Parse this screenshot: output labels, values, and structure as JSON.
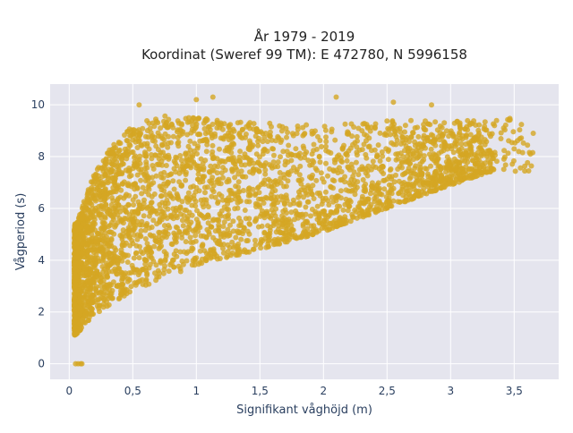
{
  "chart_data": {
    "type": "scatter",
    "title": "År 1979 - 2019",
    "subtitle": "Koordinat (Sweref 99 TM): E 472780, N 5996158",
    "xlabel": "Signifikant våghöjd (m)",
    "ylabel": "Vågperiod (s)",
    "xlim": [
      -0.15,
      3.85
    ],
    "ylim": [
      -0.6,
      10.8
    ],
    "x_ticks": [
      0,
      0.5,
      1,
      1.5,
      2,
      2.5,
      3,
      3.5
    ],
    "x_tick_labels": [
      "0",
      "0,5",
      "1",
      "1,5",
      "2",
      "2,5",
      "3",
      "3,5"
    ],
    "y_ticks": [
      0,
      2,
      4,
      6,
      8,
      10
    ],
    "y_tick_labels": [
      "0",
      "2",
      "4",
      "6",
      "8",
      "10"
    ],
    "grid": true,
    "plot_background": "#e5e5ee",
    "marker_color": "#d4a623",
    "point_cloud": {
      "description_of_shape": "dense cloud of wave height vs period observations",
      "lower_envelope": [
        [
          0.05,
          1.1
        ],
        [
          0.2,
          1.9
        ],
        [
          0.5,
          2.8
        ],
        [
          1.0,
          3.8
        ],
        [
          1.5,
          4.4
        ],
        [
          2.0,
          5.1
        ],
        [
          2.5,
          6.0
        ],
        [
          3.0,
          6.9
        ],
        [
          3.3,
          7.4
        ]
      ],
      "upper_envelope": [
        [
          0.05,
          5.4
        ],
        [
          0.2,
          7.4
        ],
        [
          0.4,
          8.9
        ],
        [
          0.7,
          9.6
        ],
        [
          1.0,
          9.5
        ],
        [
          1.5,
          9.3
        ],
        [
          2.0,
          9.2
        ],
        [
          2.5,
          9.4
        ],
        [
          3.0,
          9.4
        ],
        [
          3.5,
          9.5
        ],
        [
          3.65,
          8.9
        ]
      ],
      "zero_points": [
        [
          0.05,
          0
        ],
        [
          0.07,
          0
        ],
        [
          0.09,
          0
        ],
        [
          0.1,
          0
        ]
      ],
      "outliers": [
        [
          1.13,
          10.3
        ],
        [
          0.55,
          10.0
        ],
        [
          1.0,
          10.2
        ],
        [
          2.1,
          10.3
        ],
        [
          2.55,
          10.1
        ],
        [
          2.85,
          10.0
        ],
        [
          3.65,
          8.9
        ],
        [
          3.5,
          8.3
        ],
        [
          3.42,
          7.9
        ]
      ]
    }
  }
}
